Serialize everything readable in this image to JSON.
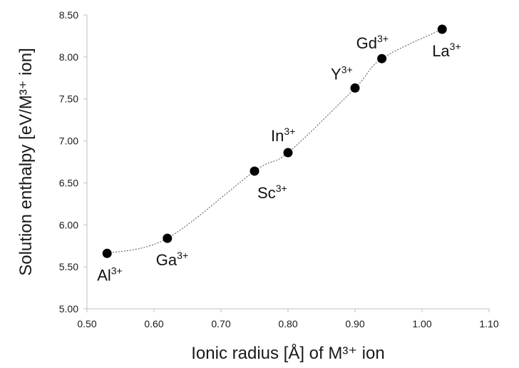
{
  "chart_data": {
    "type": "scatter",
    "xlabel": "Ionic radius [Å] of M³⁺ ion",
    "ylabel": "Solution enthalpy [eV/M³⁺ ion]",
    "xlim": [
      0.5,
      1.1
    ],
    "ylim": [
      5.0,
      8.5
    ],
    "x_ticks": [
      "0.50",
      "0.60",
      "0.70",
      "0.80",
      "0.90",
      "1.00",
      "1.10"
    ],
    "y_ticks": [
      "5.00",
      "5.50",
      "6.00",
      "6.50",
      "7.00",
      "7.50",
      "8.00",
      "8.50"
    ],
    "grid": false,
    "line_style": "dotted smooth",
    "series": [
      {
        "x": [
          0.53,
          0.62,
          0.75,
          0.8,
          0.9,
          0.94,
          1.03
        ],
        "y": [
          5.66,
          5.84,
          6.64,
          6.86,
          7.63,
          7.98,
          8.33
        ],
        "labels": [
          {
            "base": "Al",
            "sup": "3+"
          },
          {
            "base": "Ga",
            "sup": "3+"
          },
          {
            "base": "Sc",
            "sup": "3+"
          },
          {
            "base": "In",
            "sup": "3+"
          },
          {
            "base": "Y",
            "sup": "3+"
          },
          {
            "base": "Gd",
            "sup": "3+"
          },
          {
            "base": "La",
            "sup": "3+"
          }
        ]
      }
    ],
    "colors": {
      "marker": "#000000",
      "line": "#555555",
      "axis": "#bfbfbf",
      "text": "#1a1a1a"
    }
  }
}
